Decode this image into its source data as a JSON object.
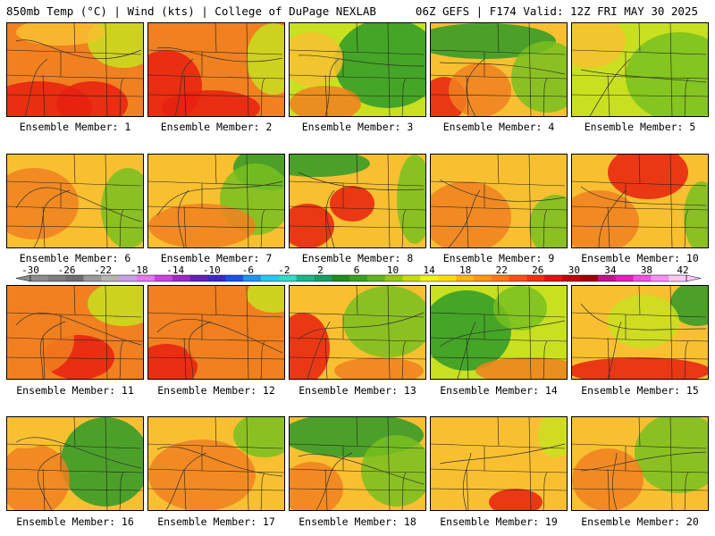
{
  "header": {
    "left": "850mb Temp (°C) | Wind (kts) | College of DuPage NEXLAB",
    "right": "06Z GEFS | F174 Valid: 12Z FRI MAY 30 2025"
  },
  "colorbar": {
    "ticks": [
      "-30",
      "-26",
      "-22",
      "-18",
      "-14",
      "-10",
      "-6",
      "-2",
      "2",
      "6",
      "10",
      "14",
      "18",
      "22",
      "26",
      "30",
      "34",
      "38",
      "42"
    ],
    "colors": [
      "#8c8c8c",
      "#7d7d7d",
      "#6e6e6e",
      "#9a9a9a",
      "#b4b4b4",
      "#c8a0e6",
      "#e678f0",
      "#d040e0",
      "#a028c8",
      "#6420b4",
      "#3c28c8",
      "#1e50e6",
      "#1e96f0",
      "#28c8f0",
      "#32dcc8",
      "#1eb48c",
      "#14a064",
      "#1e8c1e",
      "#3ca020",
      "#64b41e",
      "#96c814",
      "#c8dc14",
      "#f0f01e",
      "#ffdc14",
      "#ffb414",
      "#ff9614",
      "#ff7814",
      "#ff5014",
      "#f03214",
      "#dc1414",
      "#be0a0a",
      "#a00000",
      "#c0148c",
      "#e020c0",
      "#f050e6",
      "#f890f0",
      "#fcc8f8"
    ]
  },
  "members": [
    {
      "label": "Ensemble Member: 1"
    },
    {
      "label": "Ensemble Member: 2"
    },
    {
      "label": "Ensemble Member: 3"
    },
    {
      "label": "Ensemble Member: 4"
    },
    {
      "label": "Ensemble Member: 5"
    },
    {
      "label": "Ensemble Member: 6"
    },
    {
      "label": "Ensemble Member: 7"
    },
    {
      "label": "Ensemble Member: 8"
    },
    {
      "label": "Ensemble Member: 9"
    },
    {
      "label": "Ensemble Member: 10"
    },
    {
      "label": "Ensemble Member: 11"
    },
    {
      "label": "Ensemble Member: 12"
    },
    {
      "label": "Ensemble Member: 13"
    },
    {
      "label": "Ensemble Member: 14"
    },
    {
      "label": "Ensemble Member: 15"
    },
    {
      "label": "Ensemble Member: 16"
    },
    {
      "label": "Ensemble Member: 17"
    },
    {
      "label": "Ensemble Member: 18"
    },
    {
      "label": "Ensemble Member: 19"
    },
    {
      "label": "Ensemble Member: 20"
    }
  ],
  "map_colors": {
    "hot": "#e82010",
    "warm": "#f08020",
    "mild": "#f8c030",
    "cool": "#c8e020",
    "cooler": "#78c020",
    "cold": "#2e9a28"
  }
}
